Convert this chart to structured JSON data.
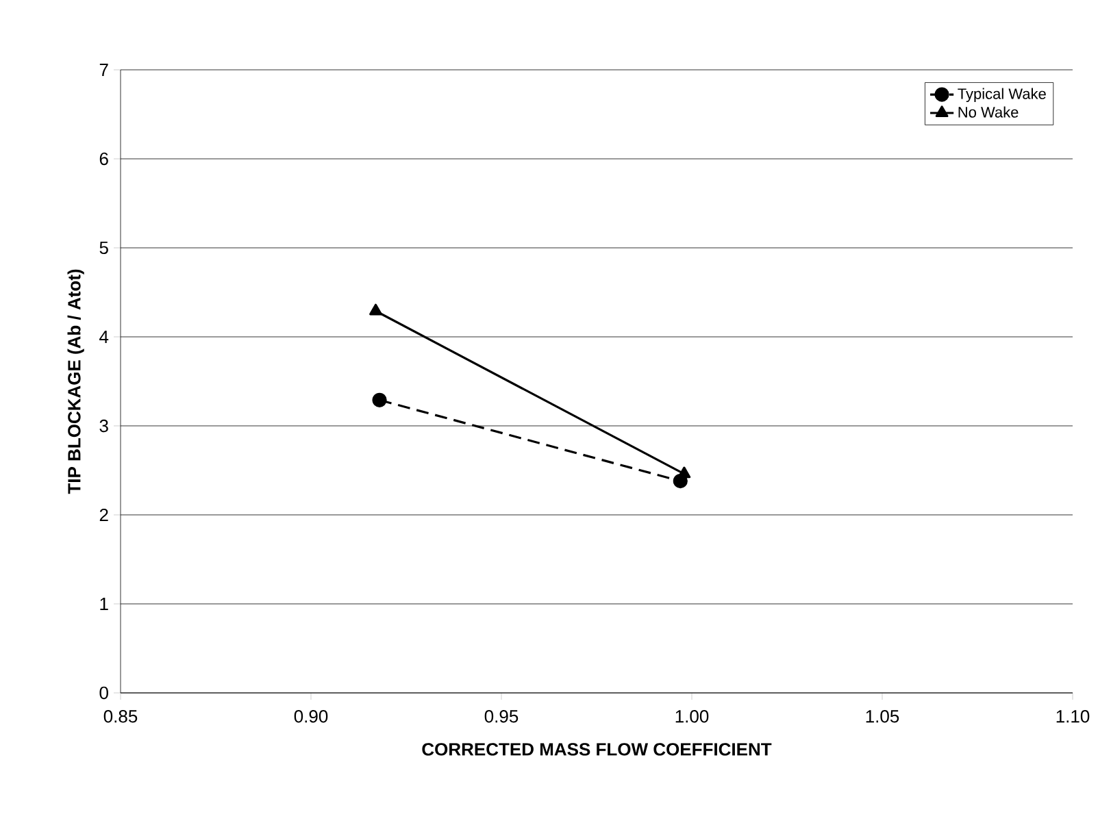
{
  "chart_data": {
    "type": "line",
    "xlabel": "CORRECTED MASS FLOW COEFFICIENT",
    "ylabel": "TIP BLOCKAGE  (Ab / Atot)",
    "xlim": [
      0.85,
      1.1
    ],
    "xticks": [
      {
        "value": 0.85,
        "label": "0.85"
      },
      {
        "value": 0.9,
        "label": "0.90"
      },
      {
        "value": 0.95,
        "label": "0.95"
      },
      {
        "value": 1.0,
        "label": "1.00"
      },
      {
        "value": 1.05,
        "label": "1.05"
      },
      {
        "value": 1.1,
        "label": "1.10"
      }
    ],
    "ylim": [
      0,
      7
    ],
    "yticks": [
      0,
      1,
      2,
      3,
      4,
      5,
      6,
      7
    ],
    "grid": "y",
    "legend": "top right",
    "series": [
      {
        "name": "Typical Wake",
        "color": "#000000",
        "x": [
          0.918,
          0.997
        ],
        "values": [
          3.29,
          2.38
        ],
        "marker": "circle",
        "line_style": "dashed"
      },
      {
        "name": "No Wake",
        "color": "#000000",
        "x": [
          0.917,
          0.998
        ],
        "values": [
          4.29,
          2.46
        ],
        "marker": "triangle",
        "line_style": "solid"
      }
    ]
  }
}
